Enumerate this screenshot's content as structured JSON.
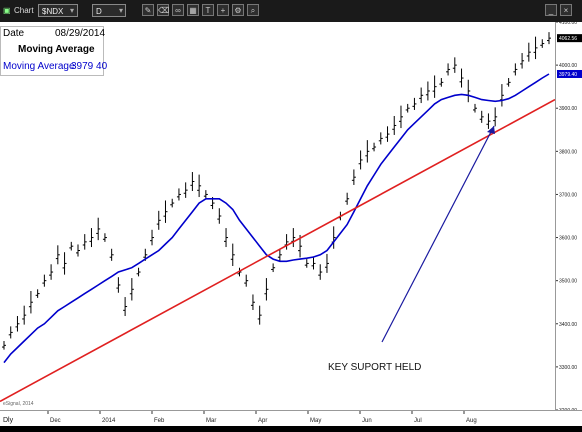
{
  "window": {
    "title": "Chart"
  },
  "toolbar": {
    "symbol": "$NDX",
    "interval": "D",
    "icons": [
      "pencil-icon",
      "eraser-icon",
      "link-icon",
      "grid-icon",
      "text-icon",
      "crosshair-icon",
      "settings-icon",
      "zoom-icon"
    ]
  },
  "infobox": {
    "date_label": "Date",
    "date_value": "08/29/2014",
    "study_label": "Moving Average",
    "ma_label": "Moving Average",
    "ma_value": "3979 40"
  },
  "colors": {
    "price": "#000000",
    "moving_average": "#0000cc",
    "trendline": "#e02020",
    "arrow": "#1a1aa0",
    "ma_value_text": "#0000cc"
  },
  "chart_data": {
    "type": "line",
    "ylim": [
      3200,
      4100
    ],
    "y_ticks": [
      "4100.00",
      "4062.56",
      "4000.00",
      "3979.40",
      "3900.00",
      "3800.00",
      "3700.00",
      "3600.00",
      "3500.00",
      "3400.00",
      "3300.00",
      "3200.00"
    ],
    "x_labels": [
      "Dec",
      "2014",
      "Feb",
      "Mar",
      "Apr",
      "May",
      "Jun",
      "Jul",
      "Aug"
    ],
    "bottom_left_label": "Dly",
    "watermark": "eSignal, 2014",
    "last_price": 4062.56,
    "ma_last": 3979.4,
    "series": [
      {
        "values": [
          3350,
          3380,
          3400,
          3420,
          3450,
          3470,
          3500,
          3520,
          3560,
          3540,
          3580,
          3570,
          3590,
          3600,
          3620,
          3600,
          3560,
          3490,
          3440,
          3480,
          3520,
          3560,
          3600,
          3640,
          3660,
          3680,
          3700,
          3710,
          3730,
          3720,
          3700,
          3680,
          3650,
          3600,
          3560,
          3520,
          3500,
          3450,
          3420,
          3480,
          3530,
          3560,
          3590,
          3600,
          3580,
          3540,
          3540,
          3520,
          3540,
          3600,
          3650,
          3690,
          3740,
          3780,
          3800,
          3810,
          3830,
          3840,
          3860,
          3880,
          3900,
          3910,
          3930,
          3940,
          3950,
          3960,
          3990,
          4000,
          3970,
          3940,
          3900,
          3880,
          3870,
          3880,
          3930,
          3960,
          3990,
          4010,
          4030,
          4040,
          4050,
          4062.56
        ]
      },
      {
        "name": "Moving Average",
        "values": [
          3310,
          3330,
          3345,
          3360,
          3375,
          3390,
          3400,
          3415,
          3430,
          3440,
          3450,
          3460,
          3470,
          3480,
          3490,
          3500,
          3510,
          3520,
          3525,
          3530,
          3540,
          3550,
          3560,
          3570,
          3585,
          3600,
          3620,
          3640,
          3660,
          3680,
          3690,
          3690,
          3690,
          3680,
          3665,
          3640,
          3620,
          3600,
          3580,
          3560,
          3550,
          3545,
          3545,
          3548,
          3550,
          3552,
          3555,
          3560,
          3570,
          3590,
          3610,
          3630,
          3660,
          3690,
          3720,
          3745,
          3770,
          3790,
          3810,
          3830,
          3850,
          3865,
          3880,
          3895,
          3910,
          3920,
          3925,
          3930,
          3932,
          3930,
          3925,
          3920,
          3918,
          3916,
          3918,
          3922,
          3930,
          3940,
          3950,
          3960,
          3970,
          3979.4
        ]
      }
    ],
    "trendline": {
      "start": 3220,
      "end": 3920
    },
    "annotation": "KEY SUPORT HELD"
  }
}
